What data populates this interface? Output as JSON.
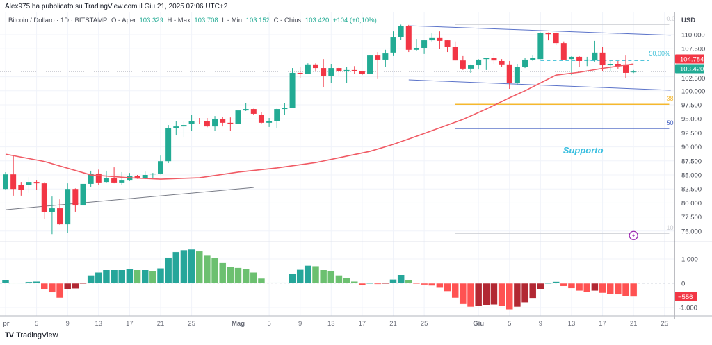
{
  "header": {
    "published_line": "Alex975 ha pubblicato su TradingView.com il Giu 21, 2025 07:06 UTC+2",
    "symbol": "Bitcoin / Dollaro · 1D · BITSTAMP",
    "open_label": "O - Aper.",
    "open": "103.329",
    "high_label": "H - Max.",
    "high": "103.708",
    "low_label": "L - Min.",
    "low": "103.152",
    "close_label": "C - Chius.",
    "close": "103.420",
    "change": "+104 (+0,10%)"
  },
  "price_axis": {
    "currency": "USD",
    "ticks": [
      {
        "v": 110000,
        "label": "110.000"
      },
      {
        "v": 107500,
        "label": "107.500"
      },
      {
        "v": 102500,
        "label": "102.500"
      },
      {
        "v": 100000,
        "label": "100.000"
      },
      {
        "v": 97500,
        "label": "97.500"
      },
      {
        "v": 95000,
        "label": "95.000"
      },
      {
        "v": 92500,
        "label": "92.500"
      },
      {
        "v": 90000,
        "label": "90.000"
      },
      {
        "v": 87500,
        "label": "87.500"
      },
      {
        "v": 85000,
        "label": "85.000"
      },
      {
        "v": 82500,
        "label": "82.500"
      },
      {
        "v": 80000,
        "label": "80.000"
      },
      {
        "v": 77500,
        "label": "77.500"
      },
      {
        "v": 75000,
        "label": "75.000"
      }
    ],
    "ma_label": "104.784",
    "ma_value": 104784,
    "last_label": "103.420",
    "last_value": 103420
  },
  "osc_axis": {
    "ticks": [
      {
        "v": 1000,
        "label": "1.000"
      },
      {
        "v": 0,
        "label": "0"
      },
      {
        "v": -1000,
        "label": "-1.000"
      }
    ],
    "last_label": "−556",
    "last_value": -556
  },
  "date_axis": [
    {
      "d": 0,
      "label": "pr",
      "bold": true
    },
    {
      "d": 4,
      "label": "5"
    },
    {
      "d": 8,
      "label": "9"
    },
    {
      "d": 12,
      "label": "13"
    },
    {
      "d": 16,
      "label": "17"
    },
    {
      "d": 20,
      "label": "21"
    },
    {
      "d": 24,
      "label": "25"
    },
    {
      "d": 30,
      "label": "Mag",
      "bold": true
    },
    {
      "d": 34,
      "label": "5"
    },
    {
      "d": 38,
      "label": "9"
    },
    {
      "d": 42,
      "label": "13"
    },
    {
      "d": 46,
      "label": "17"
    },
    {
      "d": 50,
      "label": "21"
    },
    {
      "d": 54,
      "label": "25"
    },
    {
      "d": 61,
      "label": "Giu",
      "bold": true
    },
    {
      "d": 65,
      "label": "5"
    },
    {
      "d": 69,
      "label": "9"
    },
    {
      "d": 73,
      "label": "13"
    },
    {
      "d": 77,
      "label": "17"
    },
    {
      "d": 81,
      "label": "21"
    },
    {
      "d": 85,
      "label": "25"
    }
  ],
  "drawings": {
    "fib_levels": [
      {
        "price": 111850,
        "label": "0.0",
        "color": "#c9cbd1"
      },
      {
        "price": 97600,
        "label": "38",
        "color": "#f5b82e"
      },
      {
        "price": 93300,
        "label": "50",
        "color": "#3d5bbf"
      },
      {
        "price": 74600,
        "label": "10",
        "color": "#c9cbd1"
      }
    ],
    "fib_from_day": 58,
    "fib_to_day": 85.6,
    "midline": {
      "price": 105400,
      "from_day": 69,
      "to_day": 83,
      "label": "50,00%",
      "color": "#3bbfd6"
    },
    "channel_top": [
      [
        52.2,
        111600
      ],
      [
        85.8,
        109900
      ]
    ],
    "channel_bottom": [
      [
        52,
        101950
      ],
      [
        85.8,
        100100
      ]
    ],
    "trendline": [
      [
        0,
        78800
      ],
      [
        32,
        82750
      ]
    ],
    "annotation": {
      "text": "Supporto",
      "day": 74.5,
      "price": 89450,
      "color": "#3bbfe0"
    },
    "alert_icon": {
      "day": 81,
      "price": 74200
    }
  },
  "chart_data": {
    "type": "candlestick",
    "title": "Bitcoin / Dollaro · 1D · BITSTAMP",
    "x_start": "Apr 1, 2025",
    "ylim": [
      72500,
      112500
    ],
    "colors": {
      "up": "#22ab94",
      "down": "#f23645",
      "ma": "#f05a64"
    },
    "ohlc": [
      [
        82500,
        85500,
        82400,
        85100
      ],
      [
        85100,
        88450,
        81300,
        82500
      ],
      [
        83150,
        83750,
        81300,
        82400
      ],
      [
        83150,
        84600,
        81800,
        83750
      ],
      [
        83750,
        84000,
        82400,
        83500
      ],
      [
        83500,
        83750,
        77200,
        78350
      ],
      [
        78350,
        81150,
        74450,
        79050
      ],
      [
        79050,
        80650,
        76100,
        76200
      ],
      [
        76200,
        83500,
        74700,
        82500
      ],
      [
        82500,
        82600,
        78450,
        79550
      ],
      [
        79550,
        84250,
        78950,
        83400
      ],
      [
        83400,
        85750,
        82800,
        85250
      ],
      [
        85250,
        85950,
        83150,
        83650
      ],
      [
        83750,
        85750,
        83650,
        84500
      ],
      [
        84500,
        86350,
        83500,
        83650
      ],
      [
        83650,
        85500,
        83150,
        84000
      ],
      [
        84000,
        85350,
        83900,
        84850
      ],
      [
        84850,
        85000,
        84300,
        84400
      ],
      [
        84400,
        85600,
        84250,
        85000
      ],
      [
        85100,
        85350,
        84250,
        85250
      ],
      [
        85250,
        88450,
        85100,
        87450
      ],
      [
        87450,
        93900,
        87100,
        93400
      ],
      [
        93400,
        94650,
        92050,
        93650
      ],
      [
        93650,
        94550,
        91800,
        93900
      ],
      [
        94050,
        95750,
        92900,
        94650
      ],
      [
        94650,
        95150,
        94050,
        94550
      ],
      [
        94550,
        95150,
        93500,
        93650
      ],
      [
        93650,
        95500,
        92900,
        94900
      ],
      [
        94900,
        95400,
        93650,
        94300
      ],
      [
        94300,
        95250,
        92900,
        94150
      ],
      [
        94150,
        97250,
        94000,
        96500
      ],
      [
        96500,
        97850,
        96400,
        96750
      ],
      [
        96750,
        96800,
        95650,
        95900
      ],
      [
        95750,
        96150,
        94200,
        94300
      ],
      [
        94300,
        95150,
        93550,
        94650
      ],
      [
        94650,
        96800,
        93300,
        96750
      ],
      [
        96750,
        97750,
        95750,
        96900
      ],
      [
        96900,
        104050,
        96900,
        103200
      ],
      [
        103200,
        104300,
        102300,
        102950
      ],
      [
        102950,
        104900,
        102950,
        104700
      ],
      [
        104700,
        104900,
        103450,
        104050
      ],
      [
        104050,
        105650,
        100700,
        102700
      ],
      [
        102700,
        104800,
        101350,
        104050
      ],
      [
        104050,
        104300,
        102550,
        103450
      ],
      [
        103450,
        104200,
        101450,
        103700
      ],
      [
        103700,
        104400,
        102950,
        103450
      ],
      [
        103450,
        103550,
        102800,
        103050
      ],
      [
        103050,
        106400,
        103050,
        106400
      ],
      [
        106400,
        106900,
        102100,
        105550
      ],
      [
        105550,
        107300,
        104200,
        106650
      ],
      [
        106800,
        110600,
        106300,
        109500
      ],
      [
        109600,
        111800,
        109100,
        111600
      ],
      [
        111600,
        111750,
        106900,
        107300
      ],
      [
        107300,
        109250,
        107050,
        107650
      ],
      [
        107650,
        109100,
        106550,
        109000
      ],
      [
        109000,
        110250,
        108800,
        109400
      ],
      [
        109400,
        110600,
        107500,
        108900
      ],
      [
        109000,
        109100,
        106900,
        107800
      ],
      [
        107800,
        108800,
        105400,
        105400
      ],
      [
        105400,
        106300,
        103700,
        103950
      ],
      [
        103950,
        104700,
        103200,
        104550
      ],
      [
        104550,
        105650,
        103800,
        105550
      ],
      [
        105650,
        105900,
        103700,
        105800
      ],
      [
        105800,
        106650,
        104800,
        105400
      ],
      [
        105300,
        105650,
        104200,
        104700
      ],
      [
        104700,
        105300,
        100350,
        101450
      ],
      [
        101450,
        104800,
        101100,
        104300
      ],
      [
        104300,
        105800,
        104050,
        105550
      ],
      [
        105550,
        106400,
        105300,
        105800
      ],
      [
        105650,
        110400,
        105650,
        110250
      ],
      [
        110250,
        110400,
        109000,
        110100
      ],
      [
        110250,
        110400,
        108150,
        108500
      ],
      [
        108500,
        108800,
        105550,
        105550
      ],
      [
        105650,
        106150,
        102800,
        106050
      ],
      [
        106050,
        106150,
        104300,
        105300
      ],
      [
        105400,
        106050,
        104400,
        105550
      ],
      [
        105400,
        108900,
        105200,
        106800
      ],
      [
        106800,
        107800,
        103450,
        104550
      ],
      [
        104550,
        105300,
        103450,
        104800
      ],
      [
        104800,
        105300,
        103950,
        104400
      ],
      [
        104700,
        106400,
        102300,
        103200
      ],
      [
        103329,
        103708,
        103152,
        103420
      ]
    ],
    "moving_average": [
      [
        0,
        88700
      ],
      [
        5,
        87400
      ],
      [
        11,
        85000
      ],
      [
        16,
        84500
      ],
      [
        20,
        84250
      ],
      [
        25,
        84500
      ],
      [
        30,
        85500
      ],
      [
        35,
        86250
      ],
      [
        40,
        87200
      ],
      [
        44,
        88350
      ],
      [
        47,
        89200
      ],
      [
        50,
        90450
      ],
      [
        53,
        91900
      ],
      [
        56,
        93400
      ],
      [
        59,
        94900
      ],
      [
        62,
        96750
      ],
      [
        65,
        98750
      ],
      [
        67,
        100000
      ],
      [
        71,
        102800
      ],
      [
        74,
        103300
      ],
      [
        77,
        104000
      ],
      [
        81,
        104784
      ]
    ],
    "histogram": [
      150,
      20,
      20,
      60,
      80,
      -260,
      -380,
      -600,
      -250,
      -220,
      -10,
      330,
      450,
      550,
      550,
      550,
      580,
      550,
      550,
      510,
      620,
      1060,
      1290,
      1370,
      1400,
      1320,
      1140,
      1040,
      840,
      670,
      640,
      590,
      450,
      200,
      30,
      30,
      30,
      400,
      560,
      730,
      710,
      550,
      500,
      330,
      210,
      80,
      -80,
      10,
      -40,
      -10,
      160,
      350,
      140,
      -20,
      -60,
      -100,
      -190,
      -330,
      -600,
      -860,
      -970,
      -950,
      -900,
      -880,
      -950,
      -1080,
      -970,
      -790,
      -640,
      -240,
      10,
      70,
      -120,
      -210,
      -310,
      -360,
      -310,
      -400,
      -450,
      -460,
      -540,
      -556
    ],
    "hist_ylim": [
      -1300,
      1400
    ]
  },
  "footer": {
    "brand": "TradingView",
    "brand_mark": "TV"
  }
}
